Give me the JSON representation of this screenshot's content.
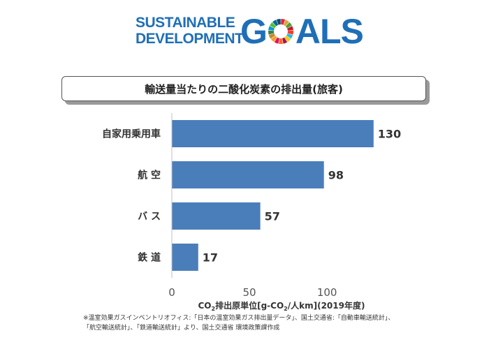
{
  "logo": {
    "line1": "SUSTAINABLE",
    "line2": "DEVELOPMENT",
    "goals_g": "G",
    "goals_rest": "ALS",
    "wheel_colors": [
      "#e5243b",
      "#dda63a",
      "#4c9f38",
      "#c5192d",
      "#ff3a21",
      "#26bde2",
      "#fcc30b",
      "#a21942",
      "#fd6925",
      "#dd1367",
      "#fd9d24",
      "#bf8b2e",
      "#3f7e44",
      "#0a97d9",
      "#56c02b",
      "#00689d",
      "#19486a"
    ]
  },
  "chart_data": {
    "type": "bar",
    "orientation": "horizontal",
    "title": "輸送量当たりの二酸化炭素の排出量(旅客)",
    "categories": [
      "自家用乗用車",
      "航 空",
      "バ ス",
      "鉄 道"
    ],
    "values": [
      130,
      98,
      57,
      17
    ],
    "value_labels": [
      "130",
      "98",
      "57",
      "17"
    ],
    "xticks": [
      "0",
      "50",
      "100"
    ],
    "xtick_values": [
      0,
      50,
      100
    ],
    "xlim": [
      0,
      140
    ],
    "xlabel_parts": [
      "CO",
      "2",
      "排出原単位[g-CO",
      "2",
      "/人km](2019年度)"
    ],
    "bar_color": "#4a7ebb",
    "grid": false,
    "legend": "none"
  },
  "note": {
    "line1": "※温室効果ガスインベントリオフィス:「日本の温室効果ガス排出量データ」、国土交通省:「自動車輸送統計」、",
    "line2": "「航空輸送統計」、「鉄道輸送統計」より、国土交通省 環境政策課作成"
  }
}
